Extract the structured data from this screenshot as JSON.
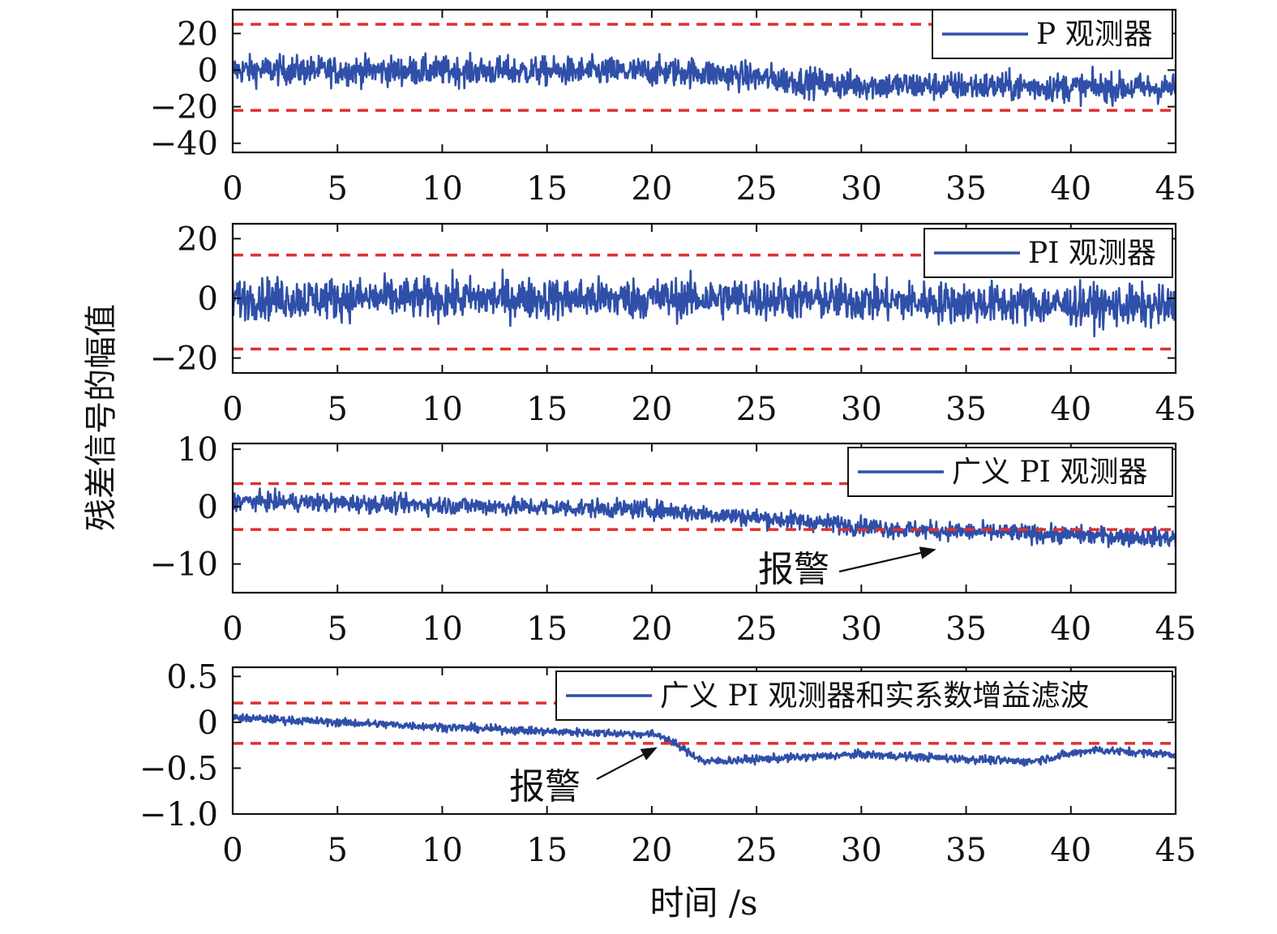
{
  "axis_labels": {
    "y": "残差信号的幅值",
    "x": "时间 /s"
  },
  "colors": {
    "series": "#2f4fa8",
    "threshold": "#e03030",
    "axis": "#111111"
  },
  "chart_data": [
    {
      "type": "line",
      "legend": "P 观测器",
      "legend_position": "top-right",
      "x_range": [
        0,
        45
      ],
      "ylim": [
        -45,
        33
      ],
      "x_ticks": [
        "0",
        "5",
        "10",
        "15",
        "20",
        "25",
        "30",
        "35",
        "40",
        "45"
      ],
      "y_ticks": [
        {
          "value": 20,
          "label": "20"
        },
        {
          "value": 0,
          "label": "0"
        },
        {
          "value": -20,
          "label": "−20"
        },
        {
          "value": -40,
          "label": "−40"
        }
      ],
      "thresholds": [
        25,
        -22
      ],
      "trend": {
        "t": [
          0,
          22,
          29,
          45
        ],
        "y": [
          0,
          -1,
          -8,
          -10
        ]
      },
      "noise_amplitude": 8,
      "grid": false
    },
    {
      "type": "line",
      "legend": "PI 观测器",
      "legend_position": "top-right",
      "x_range": [
        0,
        45
      ],
      "ylim": [
        -25,
        25
      ],
      "x_ticks": [
        "0",
        "5",
        "10",
        "15",
        "20",
        "25",
        "30",
        "35",
        "40",
        "45"
      ],
      "y_ticks": [
        {
          "value": 20,
          "label": "20"
        },
        {
          "value": 0,
          "label": "0"
        },
        {
          "value": -20,
          "label": "−20"
        }
      ],
      "thresholds": [
        14.5,
        -17
      ],
      "trend": {
        "t": [
          0,
          25,
          45
        ],
        "y": [
          0,
          0,
          -3
        ]
      },
      "noise_amplitude": 7,
      "grid": false
    },
    {
      "type": "line",
      "legend": "广义 PI 观测器",
      "legend_position": "top-right",
      "x_range": [
        0,
        45
      ],
      "ylim": [
        -15,
        11
      ],
      "x_ticks": [
        "0",
        "5",
        "10",
        "15",
        "20",
        "25",
        "30",
        "35",
        "40",
        "45"
      ],
      "y_ticks": [
        {
          "value": 10,
          "label": "10"
        },
        {
          "value": 0,
          "label": "0"
        },
        {
          "value": -10,
          "label": "−10"
        }
      ],
      "thresholds": [
        4,
        -4
      ],
      "trend": {
        "t": [
          0,
          20,
          27,
          32,
          45
        ],
        "y": [
          1,
          -0.5,
          -2.5,
          -4,
          -5.5
        ]
      },
      "noise_amplitude": 1.6,
      "grid": false,
      "annotation": {
        "text": "报警",
        "arrow_to": [
          33.5,
          -7.5
        ]
      }
    },
    {
      "type": "line",
      "legend": "广义 PI 观测器和实系数增益滤波",
      "legend_position": "top-right",
      "x_range": [
        0,
        45
      ],
      "ylim": [
        -1.0,
        0.6
      ],
      "x_ticks": [
        "0",
        "5",
        "10",
        "15",
        "20",
        "25",
        "30",
        "35",
        "40",
        "45"
      ],
      "y_ticks": [
        {
          "value": 0.5,
          "label": "0.5"
        },
        {
          "value": 0,
          "label": "0"
        },
        {
          "value": -0.5,
          "label": "−0.5"
        },
        {
          "value": -1.0,
          "label": "−1.0"
        }
      ],
      "thresholds": [
        0.21,
        -0.23
      ],
      "trend": {
        "t": [
          0,
          5,
          15,
          20,
          20.5,
          22.5,
          30,
          38,
          41,
          45
        ],
        "y": [
          0.05,
          0.0,
          -0.1,
          -0.13,
          -0.15,
          -0.43,
          -0.35,
          -0.43,
          -0.3,
          -0.35
        ]
      },
      "noise_amplitude": 0.045,
      "grid": false,
      "annotation": {
        "text": "报警",
        "arrow_to": [
          20.2,
          -0.28
        ]
      }
    }
  ]
}
